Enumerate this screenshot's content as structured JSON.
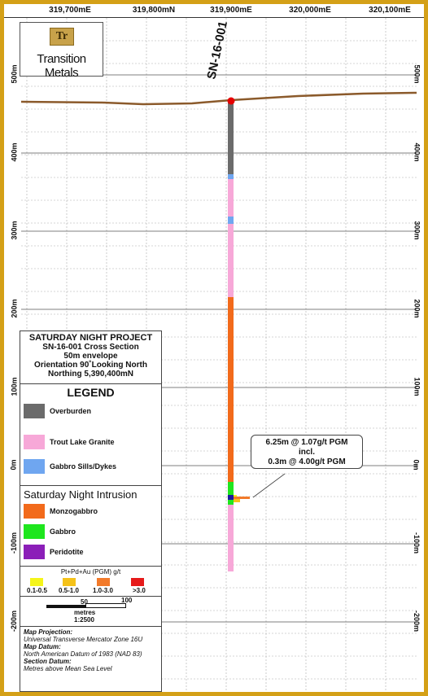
{
  "top_axis": [
    "319,700mE",
    "319,800mN",
    "319,900mE",
    "320,000mE",
    "320,100mE"
  ],
  "elev_left": [
    "500m",
    "400m",
    "300m",
    "200m",
    "100m",
    "0m",
    "-100m",
    "-200m"
  ],
  "elev_right": [
    "500m",
    "400m",
    "300m",
    "200m",
    "100m",
    "0m",
    "-100m",
    "-200m"
  ],
  "logo": {
    "mark": "Tr",
    "name": "Transition Metals"
  },
  "drillhole": {
    "name": "SN-16-001"
  },
  "title_block": {
    "project": "SATURDAY NIGHT PROJECT",
    "section": "SN-16-001 Cross Section",
    "envelope": "50m envelope",
    "orientation": "Orientation 90˚Looking North",
    "northing": "Northing 5,390,400mN"
  },
  "legend": {
    "title": "LEGEND",
    "units": [
      {
        "label": "Overburden",
        "color": "#6b6b6b"
      },
      {
        "label": "Trout Lake Granite",
        "color": "#f7a8d8"
      },
      {
        "label": "Gabbro Sills/Dykes",
        "color": "#6fa6f0"
      }
    ],
    "intrusion_title": "Saturday Night Intrusion",
    "intrusion_units": [
      {
        "label": "Monzogabbro",
        "color": "#f26a1b"
      },
      {
        "label": "Gabbro",
        "color": "#1ee61e"
      },
      {
        "label": "Peridotite",
        "color": "#8b1fb8"
      }
    ],
    "grade_title": "Pt+Pd+Au (PGM) g/t",
    "grades": [
      {
        "label": "0.1-0.5",
        "color": "#f5f51a"
      },
      {
        "label": "0.5-1.0",
        "color": "#f5c21a"
      },
      {
        "label": "1.0-3.0",
        "color": "#f27a2a"
      },
      {
        "label": ">3.0",
        "color": "#e61a1a"
      }
    ],
    "scale": {
      "mid": "50",
      "end": "100",
      "unit": "metres",
      "ratio": "1:2500"
    },
    "notes": {
      "projection_label": "Map Projection:",
      "projection": "Universal Transverse Mercator Zone 16U",
      "datum_label": "Map Datum:",
      "datum": "North American Datum of 1983 (NAD 83)",
      "section_label": "Section Datum:",
      "section": "Metres above Mean Sea Level"
    }
  },
  "callout": {
    "line1": "6.25m @ 1.07g/t PGM",
    "line2": "incl.",
    "line3": "0.3m @ 4.00g/t PGM"
  },
  "colors": {
    "frame": "#d4a017",
    "topography": "#8b5a2b",
    "collar": "#e60000"
  }
}
